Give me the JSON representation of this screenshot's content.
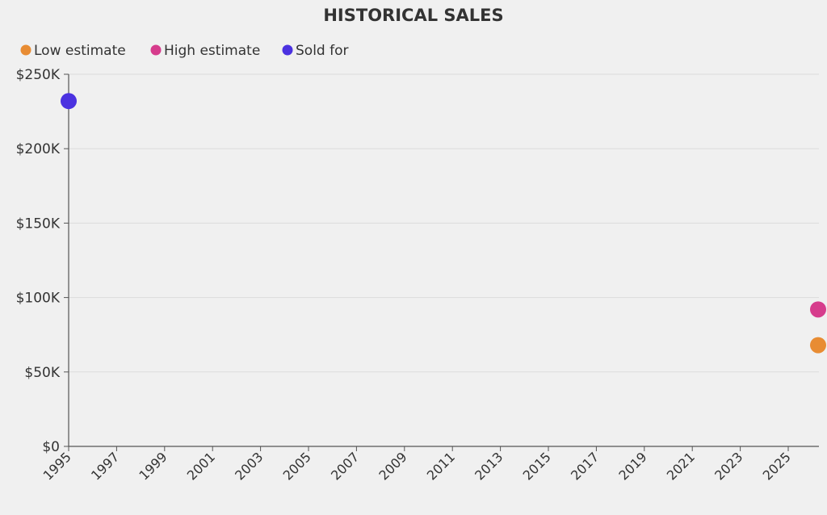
{
  "chart_data": {
    "type": "scatter",
    "title": "HISTORICAL SALES",
    "xlabel": "",
    "ylabel": "",
    "xlim": [
      1995,
      2026.3
    ],
    "ylim": [
      0,
      250000
    ],
    "x_ticks": [
      1995,
      1997,
      1999,
      2001,
      2003,
      2005,
      2007,
      2009,
      2011,
      2013,
      2015,
      2017,
      2019,
      2021,
      2023,
      2025
    ],
    "y_ticks": [
      {
        "value": 0,
        "label": "$0"
      },
      {
        "value": 50000,
        "label": "$50K"
      },
      {
        "value": 100000,
        "label": "$100K"
      },
      {
        "value": 150000,
        "label": "$150K"
      },
      {
        "value": 200000,
        "label": "$200K"
      },
      {
        "value": 250000,
        "label": "$250K"
      }
    ],
    "grid": "horizontal",
    "legend_position": "top-left",
    "series": [
      {
        "name": "Low estimate",
        "color": "#e88c33",
        "points": [
          {
            "x": 2026.25,
            "y": 68000
          }
        ]
      },
      {
        "name": "High estimate",
        "color": "#d63c8c",
        "points": [
          {
            "x": 2026.25,
            "y": 92000
          }
        ]
      },
      {
        "name": "Sold for",
        "color": "#4b32e0",
        "points": [
          {
            "x": 1995.0,
            "y": 232000
          }
        ]
      }
    ]
  }
}
